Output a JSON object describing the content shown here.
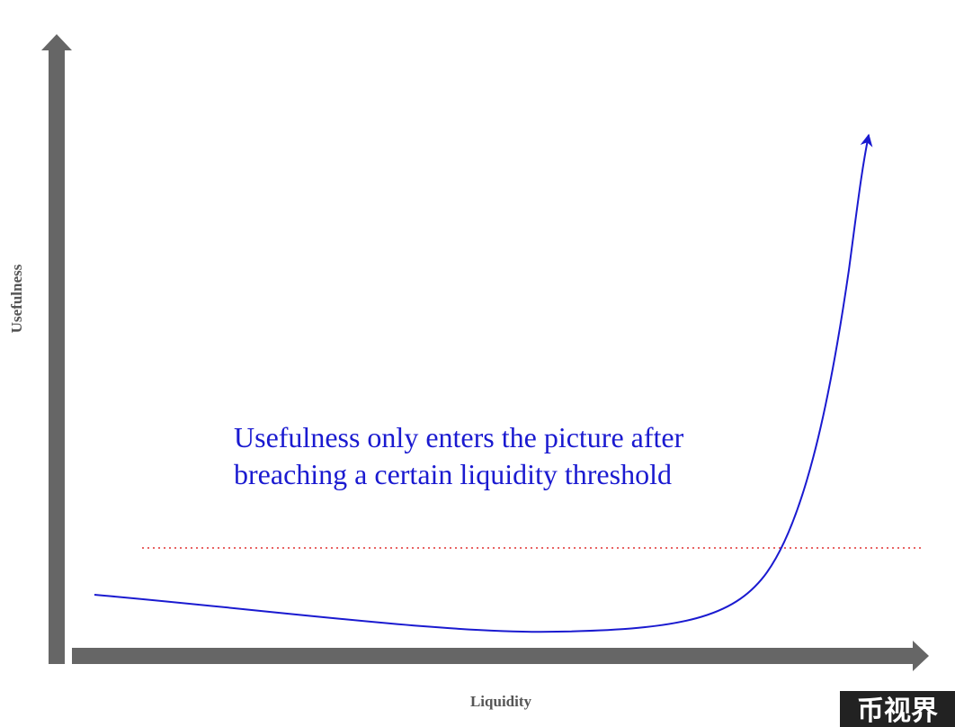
{
  "axes": {
    "y_label": "Usefulness",
    "x_label": "Liquidity"
  },
  "annotation": {
    "lines": [
      "Usefulness only enters the picture after",
      "breaching a certain liquidity threshold"
    ]
  },
  "watermark": "币视界"
}
